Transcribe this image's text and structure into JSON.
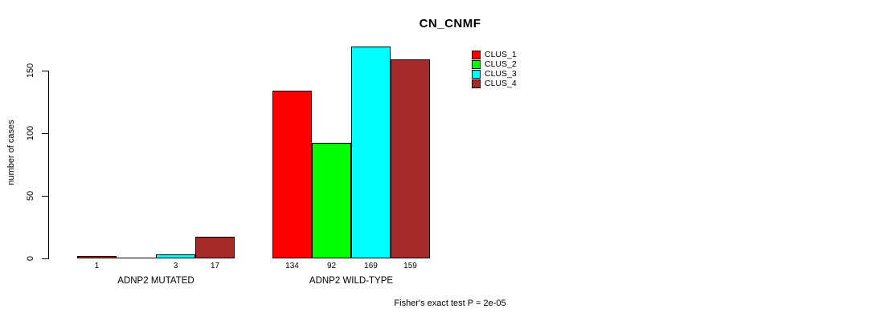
{
  "chart_data": {
    "type": "bar",
    "title": "CN_CNMF",
    "ylabel": "number of cases",
    "xlabel": "",
    "ylim": [
      0,
      150
    ],
    "y_ticks": [
      0,
      50,
      100,
      150
    ],
    "grid": false,
    "categories": [
      "ADNP2 MUTATED",
      "ADNP2 WILD-TYPE"
    ],
    "series": [
      {
        "name": "CLUS_1",
        "color": "#ff0000",
        "values": [
          1,
          134
        ]
      },
      {
        "name": "CLUS_2",
        "color": "#00ff00",
        "values": [
          0,
          92
        ]
      },
      {
        "name": "CLUS_3",
        "color": "#00ffff",
        "values": [
          3,
          169
        ]
      },
      {
        "name": "CLUS_4",
        "color": "#a52a2a",
        "values": [
          17,
          159
        ]
      }
    ],
    "bar_labels": [
      [
        "1",
        "",
        "3",
        "17"
      ],
      [
        "134",
        "92",
        "169",
        "159"
      ]
    ],
    "legend_position": "top-right",
    "annotation": "Fisher's exact test P = 2e-05"
  },
  "colors": {
    "axis": "#000000",
    "background": "#ffffff"
  }
}
